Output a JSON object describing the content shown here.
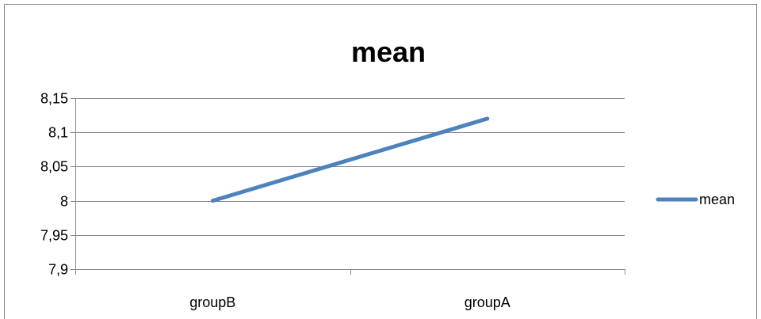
{
  "chart_data": {
    "type": "line",
    "title": "mean",
    "xlabel": "",
    "ylabel": "",
    "categories": [
      "groupB",
      "groupA"
    ],
    "series": [
      {
        "name": "mean",
        "values": [
          8.0,
          8.12
        ],
        "color": "#4f81bd"
      }
    ],
    "ylim": [
      7.9,
      8.15
    ],
    "ytick_values": [
      7.9,
      7.95,
      8.0,
      8.05,
      8.1,
      8.15
    ],
    "yticks": [
      "7,9",
      "7,95",
      "8",
      "8,05",
      "8,1",
      "8,15"
    ],
    "grid": true,
    "legend_position": "right",
    "colors": {
      "gridline": "#868686",
      "axis": "#868686",
      "frame": "#8c8c8c"
    }
  }
}
